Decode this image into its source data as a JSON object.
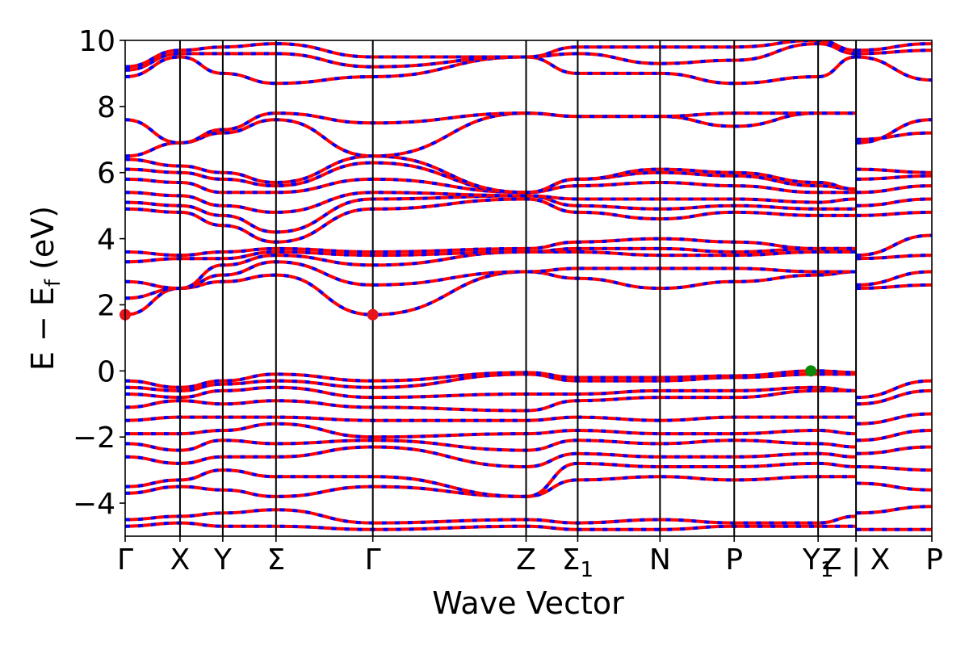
{
  "chart_data": {
    "type": "line",
    "title": "",
    "xlabel": "Wave Vector",
    "ylabel_main": "E − E",
    "ylabel_sub": "f",
    "ylabel_unit": " (eV)",
    "ylim": [
      -5,
      10
    ],
    "yticks": [
      -4,
      -2,
      0,
      2,
      4,
      6,
      8,
      10
    ],
    "ytick_labels": [
      "−4",
      "−2",
      "0",
      "2",
      "4",
      "6",
      "8",
      "10"
    ],
    "grid": false,
    "legend": "none",
    "kpath": [
      {
        "label": "Γ",
        "sub": "",
        "x": 0.0
      },
      {
        "label": "X",
        "sub": "",
        "x": 0.068
      },
      {
        "label": "Y",
        "sub": "",
        "x": 0.121
      },
      {
        "label": "Σ",
        "sub": "",
        "x": 0.187
      },
      {
        "label": "Γ",
        "sub": "",
        "x": 0.307
      },
      {
        "label": "Z",
        "sub": "",
        "x": 0.497
      },
      {
        "label": "Σ",
        "sub": "1",
        "x": 0.561
      },
      {
        "label": "N",
        "sub": "",
        "x": 0.663
      },
      {
        "label": "P",
        "sub": "",
        "x": 0.755
      },
      {
        "label": "Y",
        "sub": "1",
        "x": 0.859
      },
      {
        "label": "Z | X",
        "sub": "",
        "x": 0.906
      },
      {
        "label": "P",
        "sub": "",
        "x": 1.0
      }
    ],
    "path_break_x": 0.906,
    "cbm": {
      "x": [
        0.0,
        0.307
      ],
      "y": 1.7,
      "color": "#e8141c"
    },
    "vbm": {
      "x": 0.85,
      "y": 0.0,
      "color": "#0a8a0a"
    },
    "series": [
      {
        "line_color": "#ff0000",
        "dash_color": "#0000ff"
      }
    ],
    "bands": [
      {
        "x": [
          0,
          0.068,
          0.121,
          0.187,
          0.307,
          0.497,
          0.561,
          0.663,
          0.755,
          0.859,
          0.906
        ],
        "y": [
          -4.7,
          -4.6,
          -4.7,
          -4.7,
          -4.8,
          -4.7,
          -4.8,
          -4.8,
          -4.7,
          -4.7,
          -4.7
        ]
      },
      {
        "x": [
          0,
          0.068,
          0.121,
          0.187,
          0.307,
          0.497,
          0.561,
          0.663,
          0.755,
          0.859,
          0.906
        ],
        "y": [
          -4.5,
          -4.4,
          -4.3,
          -4.2,
          -4.6,
          -4.5,
          -4.6,
          -4.5,
          -4.6,
          -4.6,
          -4.4
        ]
      },
      {
        "x": [
          0,
          0.068,
          0.121,
          0.187,
          0.307,
          0.497,
          0.561,
          0.663,
          0.755,
          0.859,
          0.906
        ],
        "y": [
          -3.7,
          -3.5,
          -3.6,
          -3.8,
          -3.5,
          -3.8,
          -3.3,
          -3.2,
          -3.3,
          -3.2,
          -3.2
        ]
      },
      {
        "x": [
          0,
          0.068,
          0.121,
          0.187,
          0.307,
          0.497,
          0.561,
          0.663,
          0.755,
          0.859,
          0.906
        ],
        "y": [
          -3.5,
          -3.3,
          -3.0,
          -3.2,
          -3.2,
          -3.8,
          -2.8,
          -2.9,
          -2.9,
          -2.8,
          -2.9
        ]
      },
      {
        "x": [
          0,
          0.068,
          0.121,
          0.187,
          0.307,
          0.497,
          0.561,
          0.663,
          0.755,
          0.859,
          0.906
        ],
        "y": [
          -2.6,
          -2.8,
          -2.6,
          -2.6,
          -2.3,
          -2.9,
          -2.5,
          -2.6,
          -2.6,
          -2.5,
          -2.6
        ]
      },
      {
        "x": [
          0,
          0.068,
          0.121,
          0.187,
          0.307,
          0.497,
          0.561,
          0.663,
          0.755,
          0.859,
          0.906
        ],
        "y": [
          -2.2,
          -2.4,
          -2.1,
          -2.2,
          -2.1,
          -2.4,
          -2.1,
          -2.2,
          -2.1,
          -2.2,
          -2.3
        ]
      },
      {
        "x": [
          0,
          0.068,
          0.121,
          0.187,
          0.307,
          0.497,
          0.561,
          0.663,
          0.755,
          0.859,
          0.906
        ],
        "y": [
          -1.9,
          -1.9,
          -1.8,
          -1.6,
          -2.0,
          -1.9,
          -1.8,
          -1.9,
          -1.9,
          -1.8,
          -1.9
        ]
      },
      {
        "x": [
          0,
          0.068,
          0.121,
          0.187,
          0.307,
          0.497,
          0.561,
          0.663,
          0.755,
          0.859,
          0.906
        ],
        "y": [
          -1.5,
          -1.4,
          -1.4,
          -1.4,
          -1.5,
          -1.5,
          -1.4,
          -1.5,
          -1.4,
          -1.4,
          -1.4
        ]
      },
      {
        "x": [
          0,
          0.068,
          0.121,
          0.187,
          0.307,
          0.497,
          0.561,
          0.663,
          0.755,
          0.859,
          0.906
        ],
        "y": [
          -1.1,
          -0.9,
          -1.0,
          -0.9,
          -1.1,
          -1.2,
          -0.9,
          -0.8,
          -0.8,
          -0.6,
          -0.6
        ]
      },
      {
        "x": [
          0,
          0.068,
          0.121,
          0.187,
          0.307,
          0.497,
          0.561,
          0.663,
          0.755,
          0.859,
          0.906
        ],
        "y": [
          -0.7,
          -0.8,
          -0.6,
          -0.5,
          -0.8,
          -0.7,
          -0.7,
          -0.6,
          -0.6,
          -0.5,
          -0.6
        ]
      },
      {
        "x": [
          0,
          0.068,
          0.121,
          0.187,
          0.307,
          0.497,
          0.561,
          0.663,
          0.755,
          0.859,
          0.906
        ],
        "y": [
          -0.5,
          -0.6,
          -0.4,
          -0.3,
          -0.5,
          -0.1,
          -0.3,
          -0.3,
          -0.2,
          -0.1,
          -0.1
        ]
      },
      {
        "x": [
          0,
          0.068,
          0.121,
          0.187,
          0.307,
          0.497,
          0.561,
          0.663,
          0.755,
          0.859,
          0.906
        ],
        "y": [
          -0.3,
          -0.5,
          -0.3,
          -0.1,
          -0.3,
          -0.05,
          -0.2,
          -0.2,
          -0.15,
          0.0,
          -0.05
        ]
      },
      {
        "x": [
          0,
          0.068,
          0.121,
          0.187,
          0.307,
          0.497,
          0.561,
          0.663,
          0.755,
          0.859,
          0.906
        ],
        "y": [
          1.7,
          2.5,
          2.7,
          2.9,
          1.7,
          3.0,
          2.8,
          2.5,
          2.7,
          2.9,
          3.0
        ]
      },
      {
        "x": [
          0,
          0.068,
          0.121,
          0.187,
          0.307,
          0.497,
          0.561,
          0.663,
          0.755,
          0.859,
          0.906
        ],
        "y": [
          2.2,
          2.5,
          2.9,
          3.3,
          2.6,
          3.0,
          3.1,
          3.1,
          3.1,
          3.0,
          3.0
        ]
      },
      {
        "x": [
          0,
          0.068,
          0.121,
          0.187,
          0.307,
          0.497,
          0.561,
          0.663,
          0.755,
          0.859,
          0.906
        ],
        "y": [
          2.7,
          2.5,
          3.2,
          3.5,
          3.2,
          3.6,
          3.6,
          3.5,
          3.5,
          3.6,
          3.6
        ]
      },
      {
        "x": [
          0,
          0.068,
          0.121,
          0.187,
          0.307,
          0.497,
          0.561,
          0.663,
          0.755,
          0.859,
          0.906
        ],
        "y": [
          3.3,
          3.4,
          3.4,
          3.6,
          3.5,
          3.6,
          3.7,
          3.7,
          3.6,
          3.7,
          3.7
        ]
      },
      {
        "x": [
          0,
          0.068,
          0.121,
          0.187,
          0.307,
          0.497,
          0.561,
          0.663,
          0.755,
          0.859,
          0.906
        ],
        "y": [
          3.6,
          3.5,
          3.6,
          3.7,
          3.6,
          3.7,
          3.9,
          4.0,
          3.9,
          3.7,
          3.7
        ]
      },
      {
        "x": [
          0,
          0.068,
          0.121,
          0.187,
          0.307,
          0.497,
          0.561,
          0.663,
          0.755,
          0.859,
          0.906
        ],
        "y": [
          4.9,
          4.8,
          4.4,
          3.9,
          4.9,
          5.2,
          4.8,
          4.6,
          4.8,
          4.7,
          4.7
        ]
      },
      {
        "x": [
          0,
          0.068,
          0.121,
          0.187,
          0.307,
          0.497,
          0.561,
          0.663,
          0.755,
          0.859,
          0.906
        ],
        "y": [
          5.1,
          5.0,
          4.7,
          4.2,
          5.2,
          5.3,
          5.0,
          4.9,
          5.0,
          4.9,
          4.9
        ]
      },
      {
        "x": [
          0,
          0.068,
          0.121,
          0.187,
          0.307,
          0.497,
          0.561,
          0.663,
          0.755,
          0.859,
          0.906
        ],
        "y": [
          5.4,
          5.3,
          5.0,
          4.8,
          5.4,
          5.3,
          5.2,
          5.2,
          5.2,
          5.1,
          5.2
        ]
      },
      {
        "x": [
          0,
          0.068,
          0.121,
          0.187,
          0.307,
          0.497,
          0.561,
          0.663,
          0.755,
          0.859,
          0.906
        ],
        "y": [
          5.8,
          5.7,
          5.4,
          5.4,
          5.8,
          5.4,
          5.6,
          5.7,
          5.6,
          5.4,
          5.4
        ]
      },
      {
        "x": [
          0,
          0.068,
          0.121,
          0.187,
          0.307,
          0.497,
          0.561,
          0.663,
          0.755,
          0.859,
          0.906
        ],
        "y": [
          6.1,
          6.0,
          5.8,
          5.6,
          6.3,
          5.4,
          5.8,
          6.0,
          5.9,
          5.6,
          5.5
        ]
      },
      {
        "x": [
          0,
          0.068,
          0.121,
          0.187,
          0.307,
          0.497,
          0.561,
          0.663,
          0.755,
          0.859,
          0.906
        ],
        "y": [
          6.4,
          6.2,
          6.0,
          5.7,
          6.5,
          5.4,
          5.8,
          6.1,
          6.0,
          5.7,
          5.5
        ]
      },
      {
        "x": [
          0,
          0.068,
          0.121,
          0.187,
          0.307,
          0.497,
          0.561,
          0.663,
          0.755,
          0.859,
          0.906
        ],
        "y": [
          6.5,
          6.9,
          7.2,
          7.6,
          6.5,
          7.8,
          7.7,
          7.7,
          7.4,
          7.8,
          7.8
        ]
      },
      {
        "x": [
          0,
          0.068,
          0.121,
          0.187,
          0.307,
          0.497,
          0.561,
          0.663,
          0.755,
          0.859,
          0.906
        ],
        "y": [
          7.6,
          6.9,
          7.3,
          7.8,
          7.5,
          7.8,
          7.7,
          7.7,
          7.8,
          7.8,
          7.8
        ]
      },
      {
        "x": [
          0,
          0.068,
          0.121,
          0.187,
          0.307,
          0.497,
          0.561,
          0.663,
          0.755,
          0.859,
          0.906
        ],
        "y": [
          8.9,
          9.5,
          9.0,
          8.7,
          8.9,
          9.5,
          9.0,
          9.0,
          8.7,
          8.9,
          9.5
        ]
      },
      {
        "x": [
          0,
          0.068,
          0.121,
          0.187,
          0.307,
          0.497,
          0.561,
          0.663,
          0.755,
          0.859,
          0.906
        ],
        "y": [
          9.1,
          9.6,
          9.6,
          9.6,
          9.2,
          9.5,
          9.6,
          9.3,
          9.4,
          9.9,
          9.6
        ]
      },
      {
        "x": [
          0,
          0.068,
          0.121,
          0.187,
          0.307,
          0.497,
          0.561,
          0.663,
          0.755,
          0.859,
          0.906
        ],
        "y": [
          9.2,
          9.7,
          9.8,
          9.9,
          9.5,
          9.5,
          9.8,
          9.8,
          9.8,
          10.0,
          9.7
        ]
      },
      {
        "x": [
          0.906,
          1.0
        ],
        "y": [
          -0.8,
          -0.3
        ]
      },
      {
        "x": [
          0.906,
          1.0
        ],
        "y": [
          -1.0,
          -0.6
        ]
      },
      {
        "x": [
          0.906,
          1.0
        ],
        "y": [
          -1.6,
          -1.3
        ]
      },
      {
        "x": [
          0.906,
          1.0
        ],
        "y": [
          -2.1,
          -1.8
        ]
      },
      {
        "x": [
          0.906,
          1.0
        ],
        "y": [
          -2.5,
          -2.3
        ]
      },
      {
        "x": [
          0.906,
          1.0
        ],
        "y": [
          -2.9,
          -3.0
        ]
      },
      {
        "x": [
          0.906,
          1.0
        ],
        "y": [
          -3.4,
          -3.6
        ]
      },
      {
        "x": [
          0.906,
          1.0
        ],
        "y": [
          -4.3,
          -4.1
        ]
      },
      {
        "x": [
          0.906,
          1.0
        ],
        "y": [
          -4.8,
          -4.8
        ]
      },
      {
        "x": [
          0.906,
          1.0
        ],
        "y": [
          2.5,
          2.6
        ]
      },
      {
        "x": [
          0.906,
          1.0
        ],
        "y": [
          2.6,
          3.0
        ]
      },
      {
        "x": [
          0.906,
          1.0
        ],
        "y": [
          3.4,
          3.5
        ]
      },
      {
        "x": [
          0.906,
          1.0
        ],
        "y": [
          3.5,
          4.1
        ]
      },
      {
        "x": [
          0.906,
          1.0
        ],
        "y": [
          4.7,
          4.8
        ]
      },
      {
        "x": [
          0.906,
          1.0
        ],
        "y": [
          5.0,
          5.2
        ]
      },
      {
        "x": [
          0.906,
          1.0
        ],
        "y": [
          5.4,
          5.6
        ]
      },
      {
        "x": [
          0.906,
          1.0
        ],
        "y": [
          5.8,
          5.9
        ]
      },
      {
        "x": [
          0.906,
          1.0
        ],
        "y": [
          6.1,
          6.0
        ]
      },
      {
        "x": [
          0.906,
          1.0
        ],
        "y": [
          6.9,
          7.6
        ]
      },
      {
        "x": [
          0.906,
          1.0
        ],
        "y": [
          7.0,
          7.2
        ]
      },
      {
        "x": [
          0.906,
          1.0
        ],
        "y": [
          9.5,
          8.8
        ]
      },
      {
        "x": [
          0.906,
          1.0
        ],
        "y": [
          9.6,
          9.7
        ]
      },
      {
        "x": [
          0.906,
          1.0
        ],
        "y": [
          9.7,
          9.9
        ]
      }
    ]
  }
}
